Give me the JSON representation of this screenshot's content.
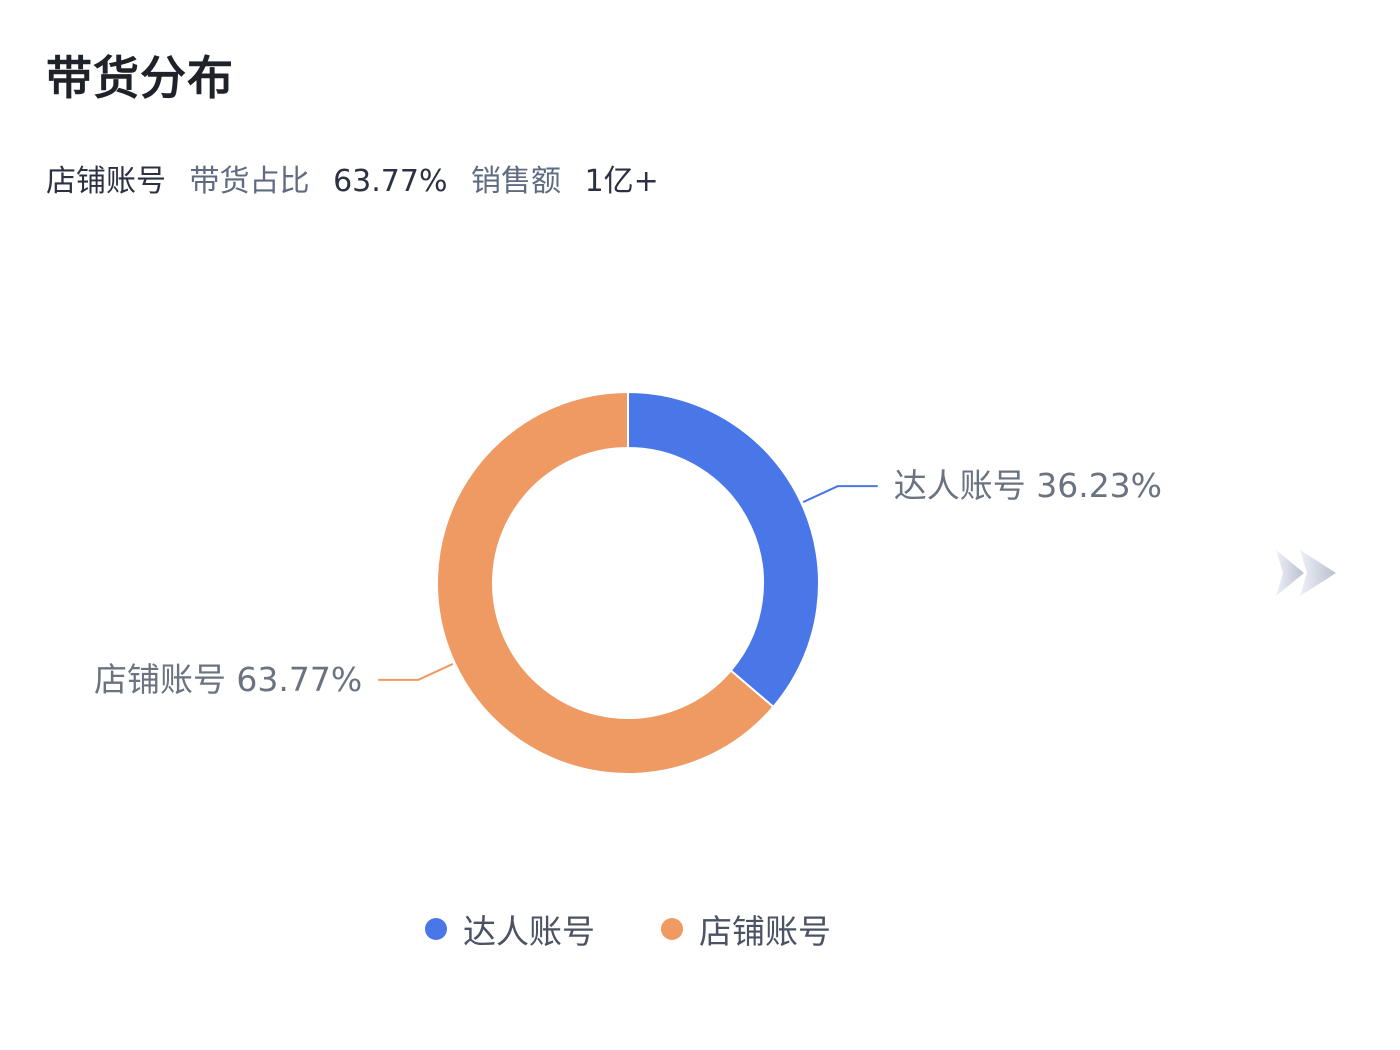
{
  "title": "带货分布",
  "summary": {
    "account": "店铺账号",
    "share_label": "带货占比",
    "share_value": "63.77%",
    "sales_label": "销售额",
    "sales_value": "1亿+"
  },
  "chart_data": {
    "type": "pie",
    "donut": true,
    "categories": [
      "达人账号",
      "店铺账号"
    ],
    "values": [
      36.23,
      63.77
    ],
    "labels": [
      "达人账号 36.23%",
      "店铺账号 63.77%"
    ],
    "colors": [
      "#4a77e8",
      "#ef9963"
    ],
    "legend_position": "bottom",
    "start_angle_deg": 0
  },
  "icons": {
    "next": "double-chevron-right-icon"
  }
}
